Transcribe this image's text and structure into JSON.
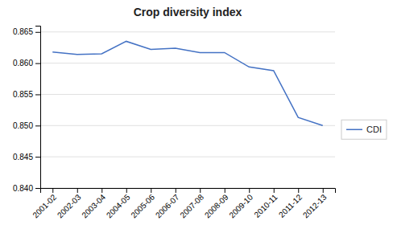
{
  "chart_data": {
    "type": "line",
    "title": "Crop diversity index",
    "categories": [
      "2001-02",
      "2002-03",
      "2003-04",
      "2004-05",
      "2005-06",
      "2006-07",
      "2007-08",
      "2008-09",
      "2009-10",
      "2010-11",
      "2011-12",
      "2012-13"
    ],
    "series": [
      {
        "name": "CDI",
        "color": "#4472C4",
        "values": [
          0.8618,
          0.8614,
          0.8615,
          0.8635,
          0.8622,
          0.8624,
          0.8617,
          0.8617,
          0.8594,
          0.8588,
          0.8513,
          0.85
        ]
      }
    ],
    "ylim": [
      0.84,
      0.866
    ],
    "yticks": [
      {
        "value": 0.84,
        "label": "0.840"
      },
      0.845,
      {
        "value": 0.85,
        "label": "0.850"
      },
      0.855,
      {
        "value": 0.86,
        "label": "0.860"
      },
      0.865
    ],
    "grid": true,
    "legend": "right"
  }
}
